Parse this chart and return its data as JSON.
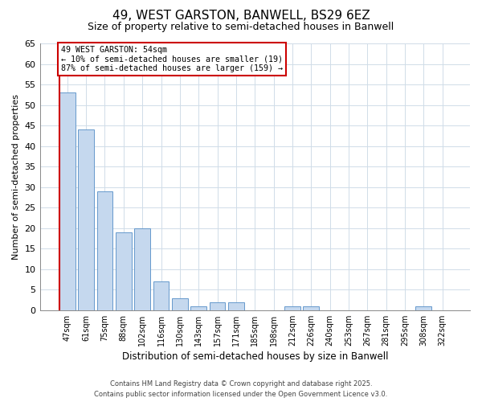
{
  "title_line1": "49, WEST GARSTON, BANWELL, BS29 6EZ",
  "title_line2": "Size of property relative to semi-detached houses in Banwell",
  "xlabel": "Distribution of semi-detached houses by size in Banwell",
  "ylabel": "Number of semi-detached properties",
  "categories": [
    "47sqm",
    "61sqm",
    "75sqm",
    "88sqm",
    "102sqm",
    "116sqm",
    "130sqm",
    "143sqm",
    "157sqm",
    "171sqm",
    "185sqm",
    "198sqm",
    "212sqm",
    "226sqm",
    "240sqm",
    "253sqm",
    "267sqm",
    "281sqm",
    "295sqm",
    "308sqm",
    "322sqm"
  ],
  "values": [
    53,
    44,
    29,
    19,
    20,
    7,
    3,
    1,
    2,
    2,
    0,
    0,
    1,
    1,
    0,
    0,
    0,
    0,
    0,
    1,
    0
  ],
  "bar_color": "#c5d8ee",
  "bar_edge_color": "#6699cc",
  "highlight_line_color": "#cc0000",
  "annotation_text_line1": "49 WEST GARSTON: 54sqm",
  "annotation_text_line2": "← 10% of semi-detached houses are smaller (19)",
  "annotation_text_line3": "87% of semi-detached houses are larger (159) →",
  "annotation_box_color": "#cc0000",
  "annotation_bg_color": "#ffffff",
  "ylim": [
    0,
    65
  ],
  "yticks": [
    0,
    5,
    10,
    15,
    20,
    25,
    30,
    35,
    40,
    45,
    50,
    55,
    60,
    65
  ],
  "grid_color": "#d0dce8",
  "footnote": "Contains HM Land Registry data © Crown copyright and database right 2025.\nContains public sector information licensed under the Open Government Licence v3.0.",
  "bg_color": "#ffffff",
  "plot_bg_color": "#ffffff"
}
